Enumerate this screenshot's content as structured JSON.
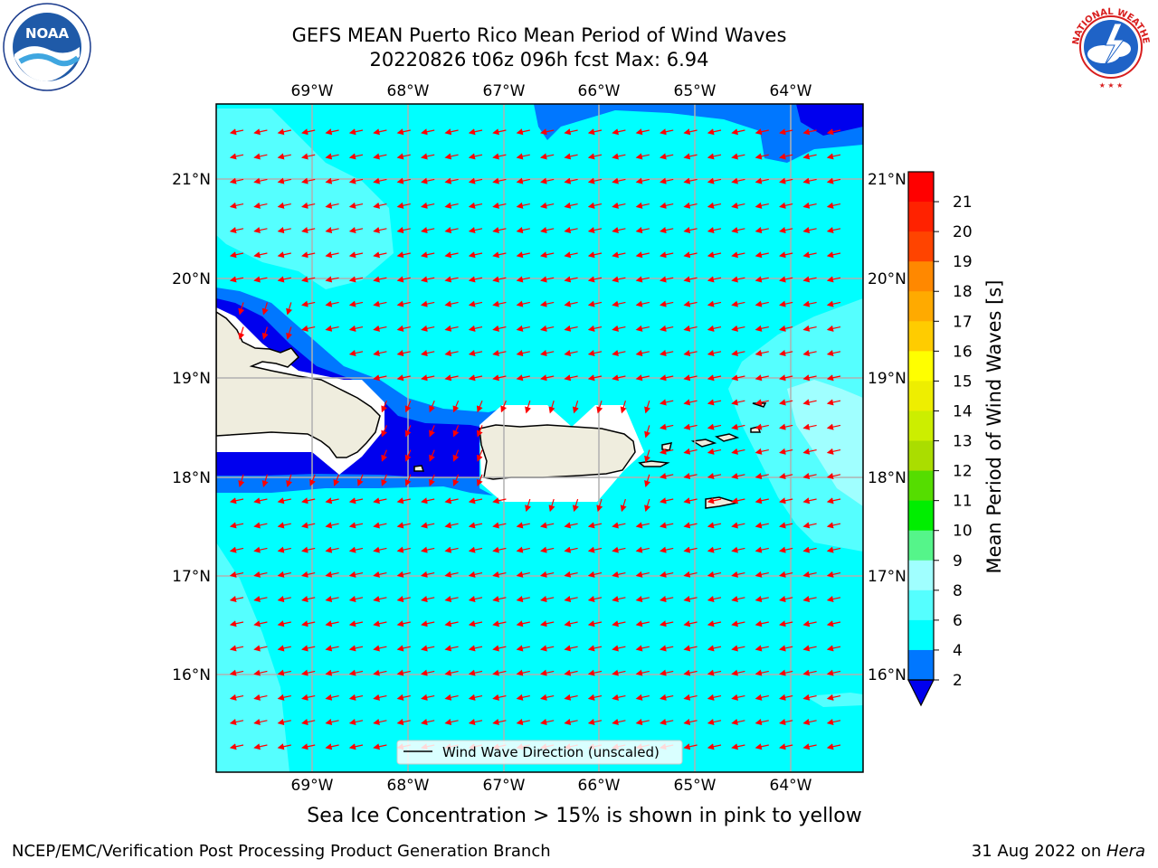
{
  "header": {
    "title_line1": "GEFS MEAN Puerto Rico Mean Period of Wind Waves",
    "title_line2": "20220826 t06z 096h fcst   Max: 6.94"
  },
  "logos": {
    "left": {
      "icon": "noaa-logo",
      "text": "NOAA",
      "ring_text": "NATIONAL OCEANIC AND ATMOSPHERIC ADMINISTRATION · U.S. DEPARTMENT OF COMMERCE"
    },
    "right": {
      "icon": "nws-logo",
      "ring_text": "NATIONAL WEATHER SERVICE"
    }
  },
  "map": {
    "region": "Puerto Rico",
    "lon_ticks": [
      "69°W",
      "68°W",
      "67°W",
      "66°W",
      "65°W",
      "64°W"
    ],
    "lat_ticks": [
      "21°N",
      "20°N",
      "19°N",
      "18°N",
      "17°N",
      "16°N"
    ],
    "lon_range": [
      -70.0,
      -63.25
    ],
    "lat_range": [
      15.0,
      21.75
    ],
    "grid": true,
    "legend": {
      "label": "Wind Wave Direction (unscaled)",
      "position": "bottom-center"
    },
    "arrow_direction": "toward west-southwest",
    "colors": {
      "ocean_main": "#00ffff",
      "ocean_light": "#55ffff",
      "ocean_lighter": "#a0ffff",
      "deep_blue": "#0000ee",
      "mid_blue": "#0077ff",
      "land": "#efedde",
      "arrow": "#ff0000",
      "grid": "#b0b0b0"
    }
  },
  "colorbar": {
    "label": "Mean Period of Wind Waves [s]",
    "ticks": [
      "2",
      "4",
      "6",
      "8",
      "9",
      "10",
      "11",
      "12",
      "13",
      "14",
      "15",
      "16",
      "17",
      "18",
      "19",
      "20",
      "21"
    ],
    "colors": [
      "#0000ee",
      "#0077ff",
      "#00ffff",
      "#55ffff",
      "#a0ffff",
      "#55f58a",
      "#00ee00",
      "#55dd00",
      "#aadd00",
      "#ccee00",
      "#eeee00",
      "#ffff00",
      "#ffcc00",
      "#ffaa00",
      "#ff8800",
      "#ff4400",
      "#ff2200",
      "#ff0000"
    ],
    "extend": "min"
  },
  "subtitle": "Sea Ice Concentration > 15% is shown in pink to yellow",
  "footer": {
    "left": "NCEP/EMC/Verification Post Processing Product Generation Branch",
    "right_date": "31 Aug 2022 on ",
    "right_machine": "Hera"
  }
}
